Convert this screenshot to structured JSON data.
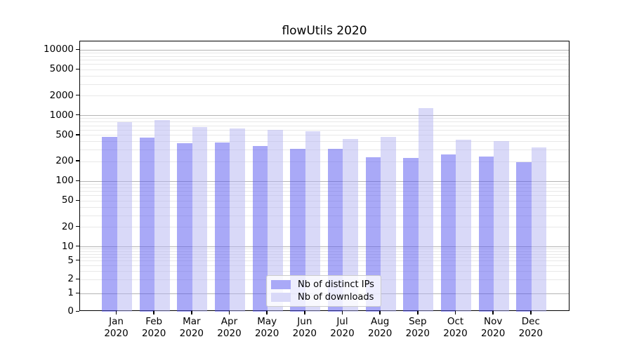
{
  "title": "flowUtils 2020",
  "chart_data": {
    "type": "bar",
    "title": "flowUtils 2020",
    "categories": [
      "Jan",
      "Feb",
      "Mar",
      "Apr",
      "May",
      "Jun",
      "Jul",
      "Aug",
      "Sep",
      "Oct",
      "Nov",
      "Dec"
    ],
    "category_year": "2020",
    "series": [
      {
        "name": "Nb of distinct IPs",
        "color": "#a9a9f7",
        "fill_rgba": "rgba(83,83,239,0.5)",
        "values": [
          470,
          460,
          380,
          385,
          345,
          315,
          310,
          230,
          225,
          255,
          240,
          195
        ]
      },
      {
        "name": "Nb of downloads",
        "color": "#d9d9f8",
        "fill_rgba": "rgba(179,179,241,0.5)",
        "values": [
          800,
          860,
          670,
          630,
          610,
          580,
          440,
          470,
          1300,
          430,
          410,
          330
        ]
      }
    ],
    "xlabel": "",
    "ylabel": "",
    "y_scale": "symlog",
    "y_ticks": [
      0,
      1,
      2,
      5,
      10,
      20,
      50,
      100,
      200,
      500,
      1000,
      2000,
      5000,
      10000
    ],
    "y_major_gridlines": [
      1,
      10,
      100,
      1000,
      10000
    ],
    "ylim": [
      0,
      13500
    ],
    "grid": true,
    "legend_position": "lower center",
    "colors": {
      "major_grid": "#b4b4b4",
      "minor_grid": "#e8e8e8",
      "axis": "#000000",
      "legend_border": "#cccccc"
    }
  }
}
